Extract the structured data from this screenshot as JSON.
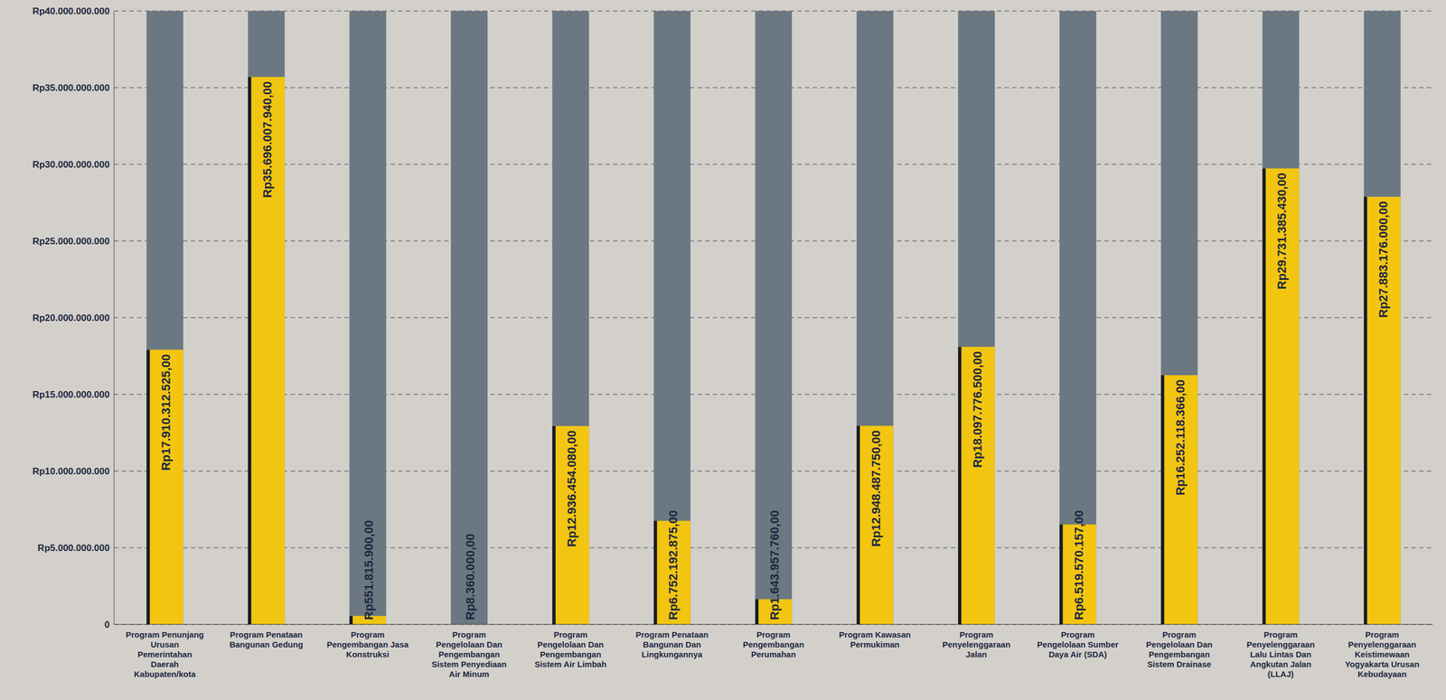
{
  "chart_data": {
    "type": "bar",
    "categories": [
      "Program Penunjang Urusan Pemerintahan Daerah Kabupaten/kota",
      "Program Penataan Bangunan Gedung",
      "Program Pengembangan Jasa Konstruksi",
      "Program Pengelolaan Dan Pengembangan Sistem Penyediaan Air Minum",
      "Program Pengelolaan Dan Pengembangan Sistem Air Limbah",
      "Program Penataan Bangunan Dan Lingkungannya",
      "Program Pengembangan Perumahan",
      "Program Kawasan Permukiman",
      "Program Penyelenggaraan Jalan",
      "Program Pengelolaan Sumber Daya Air (SDA)",
      "Program Pengelolaan Dan Pengembangan Sistem Drainase",
      "Program Penyelenggaraan Lalu Lintas Dan Angkutan Jalan (LLAJ)",
      "Program Penyelenggaraan Keistimewaan Yogyakarta Urusan Kebudayaan"
    ],
    "values": [
      17910312525,
      35696007940,
      551815900,
      8360000,
      12936454080,
      6752192875,
      1643957760,
      12948487750,
      18097776500,
      6519570157,
      16252118366,
      29731385430,
      27883176000
    ],
    "value_labels": [
      "Rp17.910.312.525,00",
      "Rp35.696.007.940,00",
      "Rp551.815.900,00",
      "Rp8.360.000,00",
      "Rp12.936.454.080,00",
      "Rp6.752.192.875,00",
      "Rp1.643.957.760,00",
      "Rp12.948.487.750,00",
      "Rp18.097.776.500,00",
      "Rp6.519.570.157,00",
      "Rp16.252.118.366,00",
      "Rp29.731.385.430,00",
      "Rp27.883.176.000,00"
    ],
    "data_labels": true,
    "color": "#F2C511",
    "ylim": [
      0,
      40000000000
    ],
    "yticks": [
      0,
      {
        "value": 5000000000,
        "label": "Rp5.000.000.000"
      },
      {
        "value": 10000000000,
        "label": "Rp10.000.000.000"
      },
      {
        "value": 15000000000,
        "label": "Rp15.000.000.000"
      },
      {
        "value": 20000000000,
        "label": "Rp20.000.000.000"
      },
      {
        "value": 25000000000,
        "label": "Rp25.000.000.000"
      },
      {
        "value": 30000000000,
        "label": "Rp30.000.000.000"
      },
      {
        "value": 35000000000,
        "label": "Rp35.000.000.000"
      },
      {
        "value": 40000000000,
        "label": "Rp40.000.000.000"
      }
    ],
    "grid": true
  }
}
